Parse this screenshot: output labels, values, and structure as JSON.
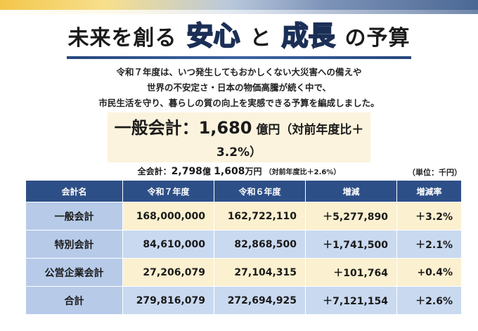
{
  "title": {
    "prefix": "未来を創る",
    "word1": "安心",
    "connector": "と",
    "word2": "成長",
    "suffix": "の予算"
  },
  "description": [
    "令和７年度は、いつ発生してもおかしくない大災害への備えや",
    "世界の不安定さ・日本の物価高騰が続く中で、",
    "市民生活を守り、暮らしの質の向上を実感できる予算を編成しました。"
  ],
  "summary": {
    "general_label": "一般会計：",
    "general_amount": "1,680",
    "general_unit": "億円",
    "general_change": "（対前年度比＋3.2%）",
    "total_label": "全会計：",
    "total_oku": "2,798",
    "total_oku_unit": "億",
    "total_man": "1,608",
    "total_man_unit": "万円",
    "total_change": "（対前年度比＋2.6%）"
  },
  "unit_note": "（単位：千円）",
  "table": {
    "headers": [
      "会計名",
      "令和７年度",
      "令和６年度",
      "増減",
      "増減率"
    ],
    "rows": [
      [
        "一般会計",
        "168,000,000",
        "162,722,110",
        "＋5,277,890",
        "＋3.2%"
      ],
      [
        "特別会計",
        "84,610,000",
        "82,868,500",
        "＋1,741,500",
        "＋2.1%"
      ],
      [
        "公営企業会計",
        "27,206,079",
        "27,104,315",
        "＋101,764",
        "+0.4%"
      ],
      [
        "合計",
        "279,816,079",
        "272,694,925",
        "＋7,121,154",
        "＋2.6%"
      ]
    ]
  },
  "colors": {
    "header_bg": "#2d4f87",
    "name_col_bg": "#b7cbe9",
    "row_yellow": "#fbf0cf",
    "row_blue": "#c9d9f0",
    "accent_blue": "#4f86d9",
    "accent_orange": "#f2ad2a"
  }
}
